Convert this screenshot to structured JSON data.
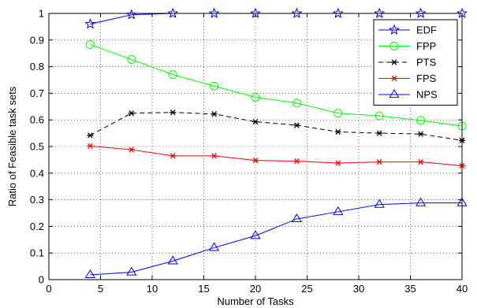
{
  "chart_data": {
    "type": "line",
    "xlabel": "Number of Tasks",
    "ylabel": "Ratio of Feasible task sets",
    "xlim": [
      0,
      40
    ],
    "ylim": [
      0,
      1
    ],
    "xticks": [
      0,
      5,
      10,
      15,
      20,
      25,
      30,
      35,
      40
    ],
    "yticks": [
      0,
      0.1,
      0.2,
      0.3,
      0.4,
      0.5,
      0.6,
      0.7,
      0.8,
      0.9,
      1
    ],
    "xtick_labels": [
      "0",
      "5",
      "10",
      "15",
      "20",
      "25",
      "30",
      "35",
      "40"
    ],
    "ytick_labels": [
      "0",
      "0.1",
      "0.2",
      "0.3",
      "0.4",
      "0.5",
      "0.6",
      "0.7",
      "0.8",
      "0.9",
      "1"
    ],
    "grid": true,
    "legend_position": "top-right",
    "x": [
      4,
      8,
      12,
      16,
      20,
      24,
      28,
      32,
      36,
      40
    ],
    "series": [
      {
        "name": "EDF",
        "color": "#0000ff",
        "marker": "star",
        "line": "solid",
        "values": [
          0.96,
          0.995,
          1.0,
          1.0,
          1.0,
          1.0,
          1.0,
          1.0,
          1.0,
          1.0
        ]
      },
      {
        "name": "FPP",
        "color": "#00ff00",
        "marker": "circle",
        "line": "solid",
        "values": [
          0.883,
          0.827,
          0.77,
          0.727,
          0.685,
          0.663,
          0.625,
          0.615,
          0.598,
          0.577
        ]
      },
      {
        "name": "PTS",
        "color": "#000000",
        "marker": "asterisk",
        "line": "dashed",
        "values": [
          0.542,
          0.625,
          0.628,
          0.622,
          0.593,
          0.58,
          0.555,
          0.55,
          0.547,
          0.523
        ]
      },
      {
        "name": "FPS",
        "color": "#ff0000",
        "marker": "asterisk",
        "line": "solid",
        "values": [
          0.502,
          0.488,
          0.465,
          0.465,
          0.448,
          0.445,
          0.438,
          0.442,
          0.442,
          0.428
        ]
      },
      {
        "name": "NPS",
        "color": "#0000ff",
        "marker": "triangle",
        "line": "solid",
        "values": [
          0.018,
          0.028,
          0.07,
          0.12,
          0.165,
          0.228,
          0.255,
          0.282,
          0.288,
          0.288
        ]
      }
    ]
  }
}
